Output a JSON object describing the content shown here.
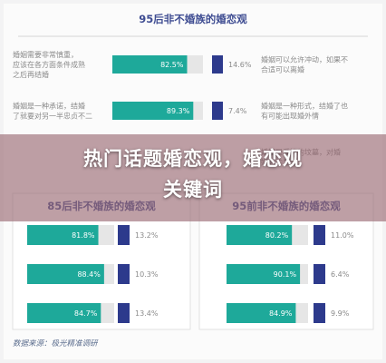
{
  "overlay": {
    "line1": "热门话题婚恋观，婚恋观",
    "line2": "关键词"
  },
  "source": "数据来源：极光精准调研",
  "colors": {
    "teal": "#1ea99a",
    "navy": "#2d3a8c",
    "title": "#3f4d92",
    "label": "#8a8a8a",
    "track": "#e6e6e6"
  },
  "chart_data": [
    {
      "type": "bar",
      "title": "95后非不婚族的婚恋观",
      "xlim": [
        0,
        100
      ],
      "rows": [
        {
          "left_label": [
            "婚姻需要非常慎重，",
            "应该在各方面条件成熟",
            "之后再结婚"
          ],
          "left_value": 82.5,
          "right_label": [
            "婚姻可以允许冲动，如果不",
            "合适可以离婚"
          ],
          "right_value": 14.6
        },
        {
          "left_label": [
            "婚姻是一种承诺，结婚",
            "了就要对另一半忠贞不二"
          ],
          "left_value": 89.3,
          "right_label": [
            "婚姻是一种形式，结婚了也",
            "有可能出现婚外情"
          ],
          "right_value": 7.4
        },
        {
          "left_label": [
            "",
            ""
          ],
          "left_value": null,
          "right_label": [
            "婚姻是爱情的坟墓，对婚",
            "姻后的生活"
          ],
          "right_value": null
        }
      ]
    },
    {
      "type": "bar",
      "title": "85后非不婚族的婚恋观",
      "xlim": [
        0,
        100
      ],
      "rows": [
        {
          "value": 81.8,
          "other": 13.2
        },
        {
          "value": 88.4,
          "other": 10.3
        },
        {
          "value": 84.7,
          "other": 13.4
        }
      ]
    },
    {
      "type": "bar",
      "title": "95前非不婚族的婚恋观",
      "xlim": [
        0,
        100
      ],
      "rows": [
        {
          "value": 80.2,
          "other": 11.0
        },
        {
          "value": 90.1,
          "other": 6.4
        },
        {
          "value": 84.9,
          "other": 9.9
        }
      ]
    }
  ]
}
